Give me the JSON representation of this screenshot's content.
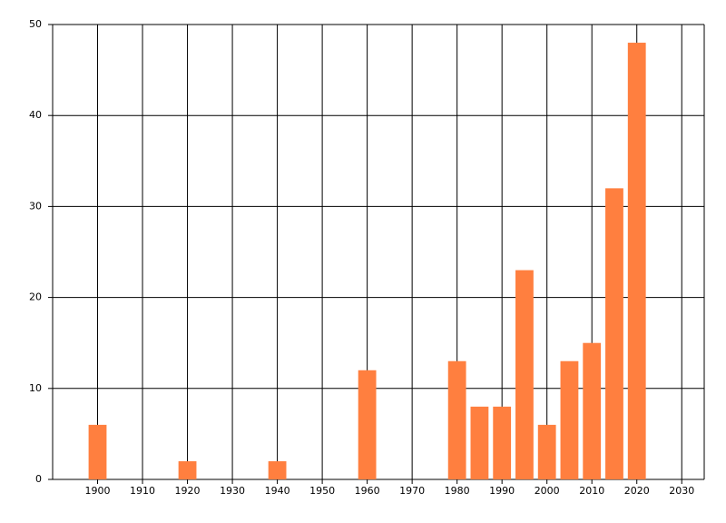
{
  "chart_data": {
    "type": "bar",
    "x": [
      1900,
      1920,
      1940,
      1960,
      1980,
      1985,
      1990,
      1995,
      2000,
      2005,
      2010,
      2015,
      2020
    ],
    "values": [
      6,
      2,
      2,
      12,
      13,
      8,
      8,
      23,
      6,
      13,
      15,
      32,
      48
    ],
    "color": "#ff7f3f",
    "xlim": [
      1890,
      2035
    ],
    "xticks": [
      1900,
      1910,
      1920,
      1930,
      1940,
      1950,
      1960,
      1970,
      1980,
      1990,
      2000,
      2010,
      2020,
      2030
    ],
    "ylim": [
      0,
      50
    ],
    "yticks": [
      0,
      10,
      20,
      30,
      40,
      50
    ],
    "grid": true
  }
}
